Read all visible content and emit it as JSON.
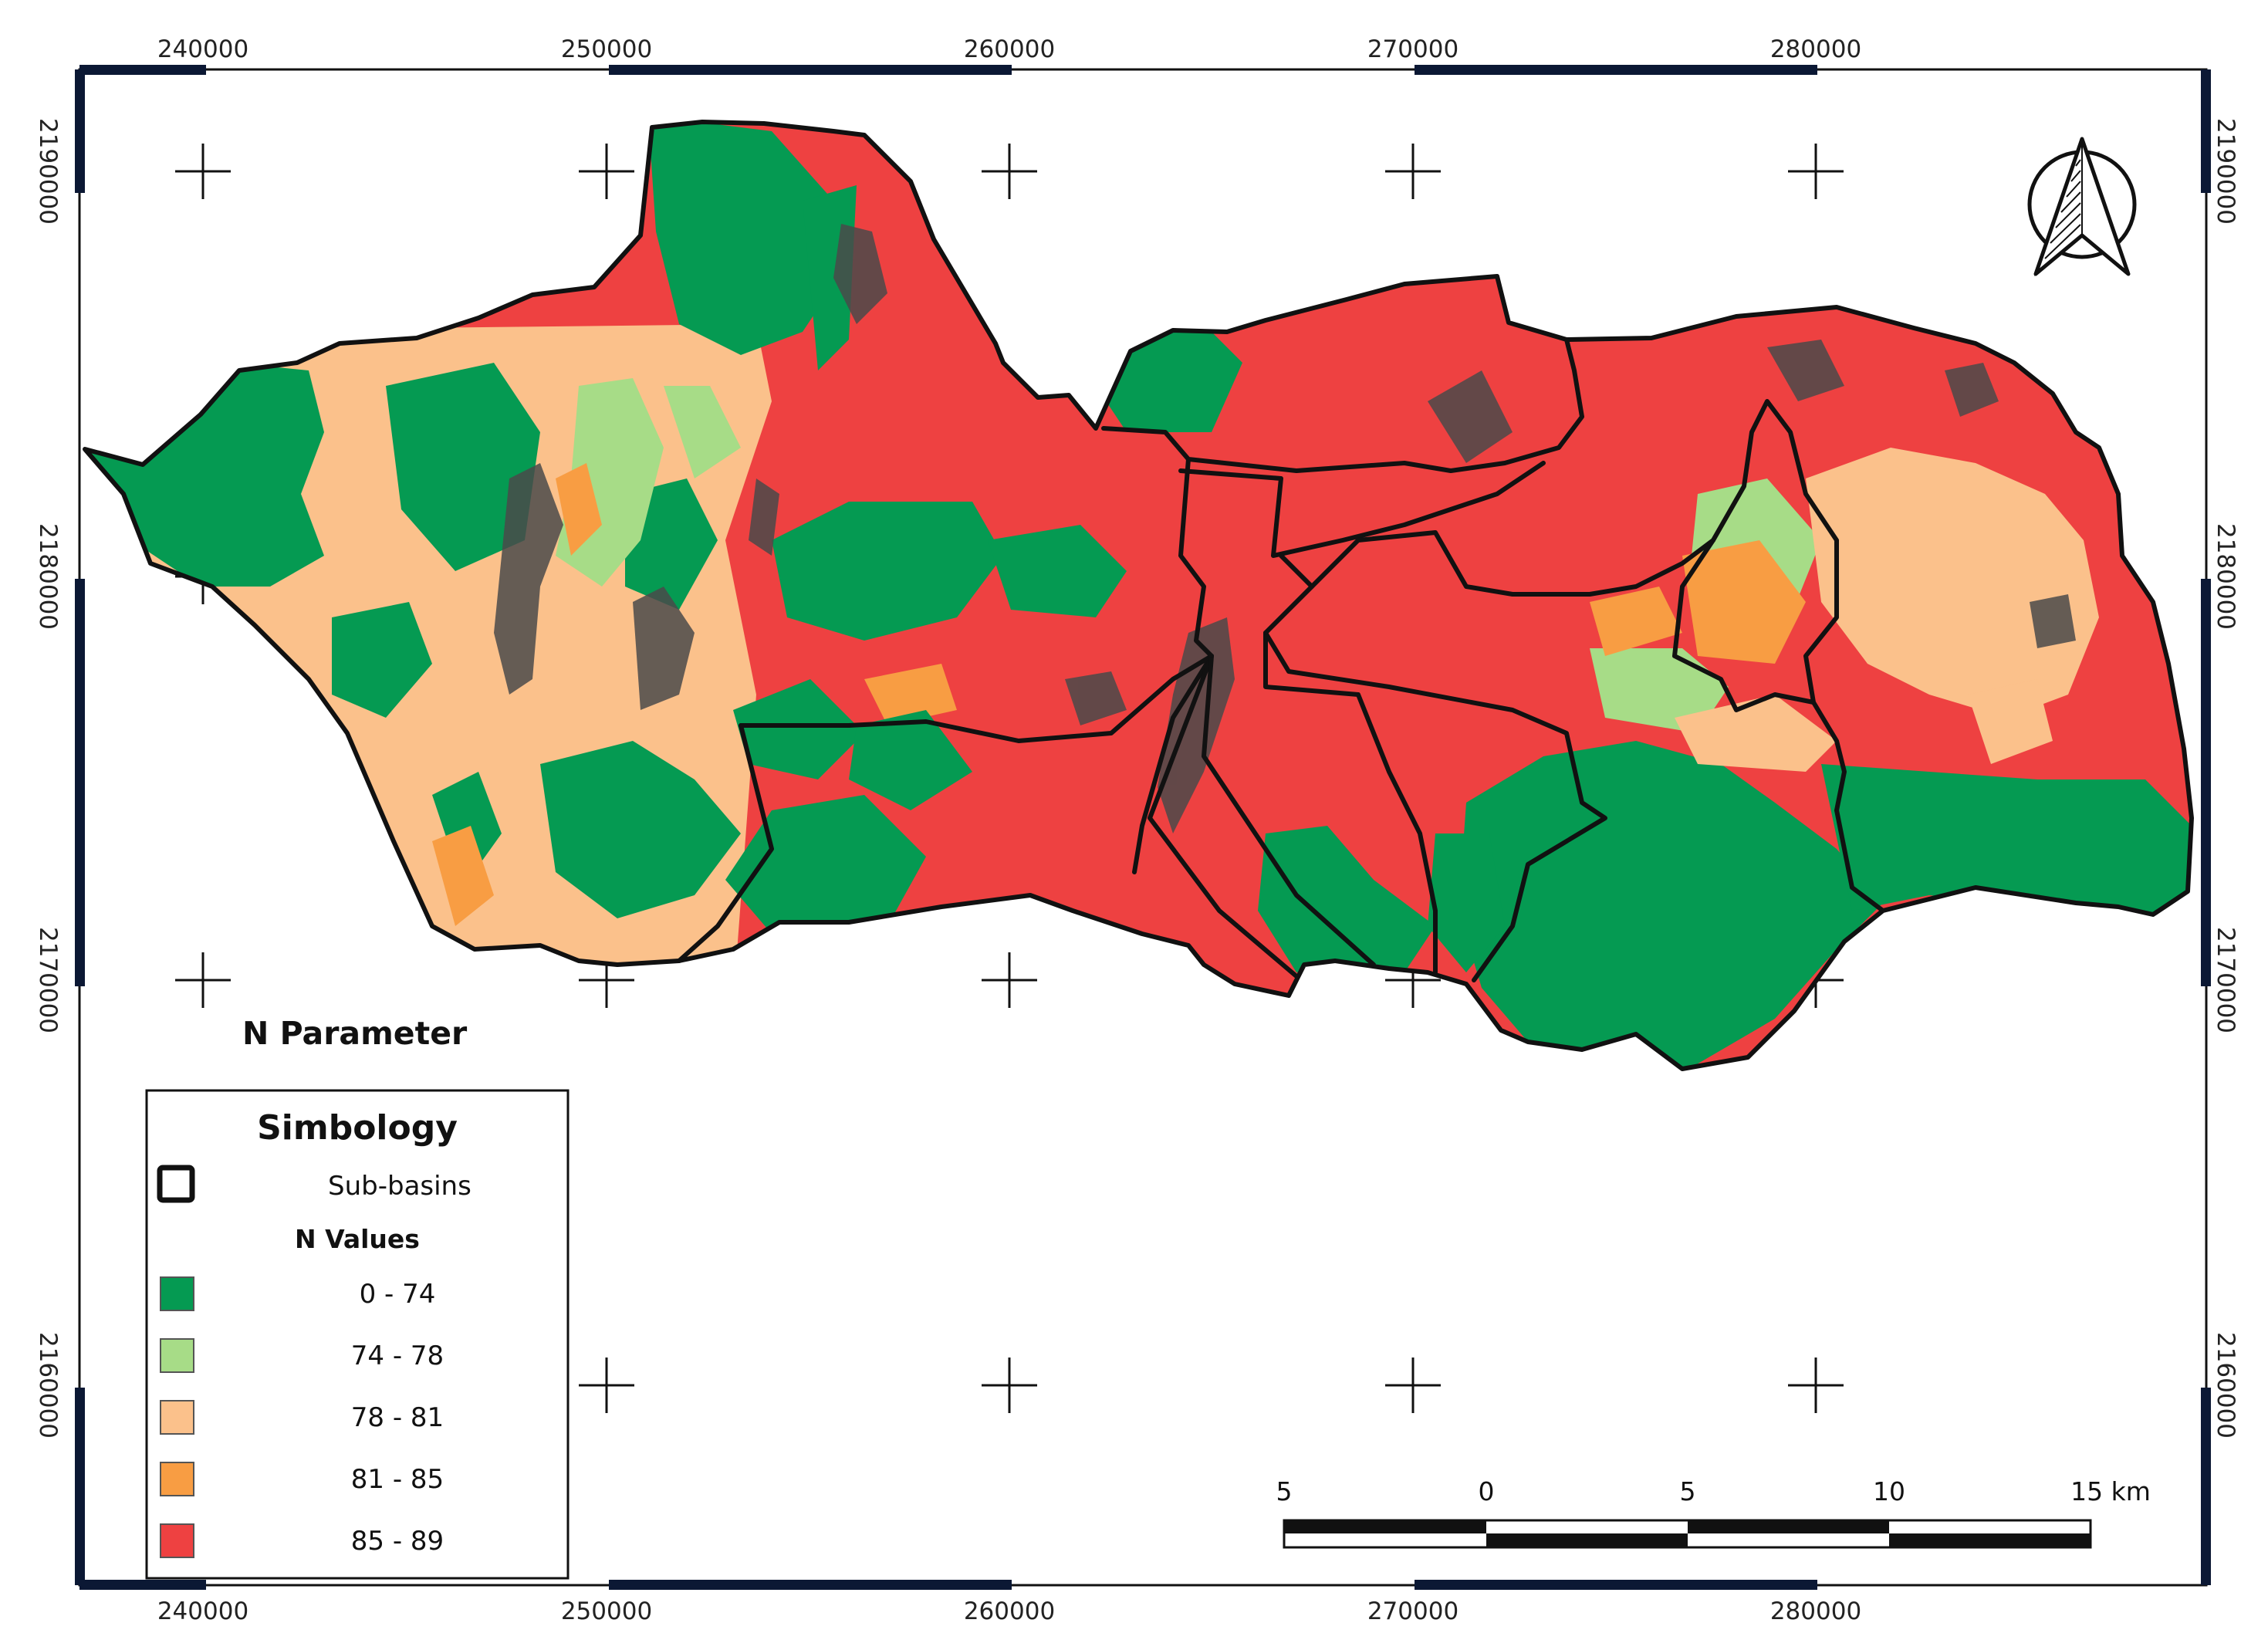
{
  "map": {
    "title": "N Parameter",
    "colors": {
      "class_0_74": "#059a52",
      "class_74_78": "#a7dc87",
      "class_78_81": "#fbc18b",
      "class_81_85": "#f89d43",
      "class_85_89": "#ee4141",
      "urban": "#4a4a4a",
      "frame": "#0b1834"
    },
    "grid": {
      "x_labels": [
        "240000",
        "250000",
        "260000",
        "270000",
        "280000"
      ],
      "y_labels": [
        "2190000",
        "2180000",
        "2170000",
        "2160000"
      ]
    },
    "north_arrow_icon": "north-arrow-icon"
  },
  "legend": {
    "title": "Simbology",
    "subbasins_label": "Sub-basins",
    "values_header": "N Values",
    "classes": [
      {
        "label": "0 - 74",
        "color": "#059a52"
      },
      {
        "label": "74 - 78",
        "color": "#a7dc87"
      },
      {
        "label": "78 - 81",
        "color": "#fbc18b"
      },
      {
        "label": "81 - 85",
        "color": "#f89d43"
      },
      {
        "label": "85 - 89",
        "color": "#ee4141"
      }
    ]
  },
  "scalebar": {
    "labels": [
      "5",
      "0",
      "5",
      "10",
      "15 km"
    ]
  }
}
